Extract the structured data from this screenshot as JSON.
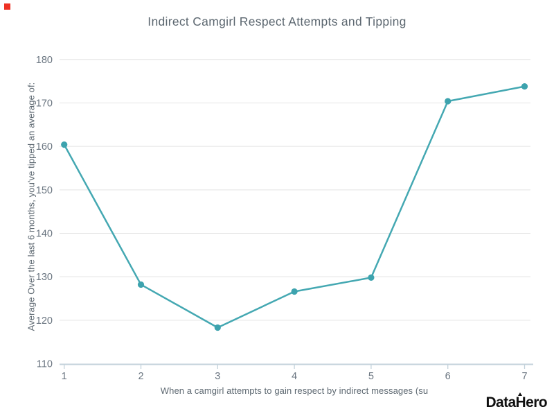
{
  "window": {
    "corner_marker_color": "#ee3124"
  },
  "footer": {
    "logo_text": "DataHero"
  },
  "chart_data": {
    "type": "line",
    "title": "Indirect Camgirl Respect Attempts and Tipping",
    "xlabel": "When a camgirl attempts to gain respect by indirect messages (su",
    "ylabel": "Average Over the last 6 months, you've tipped an average of:",
    "x": [
      1,
      2,
      3,
      4,
      5,
      6,
      7
    ],
    "x_tick_labels": [
      "1",
      "2",
      "3",
      "4",
      "5",
      "6",
      "7"
    ],
    "values": [
      160.4,
      128.2,
      118.3,
      126.6,
      129.8,
      170.4,
      173.8
    ],
    "ylim": [
      110,
      180
    ],
    "yticks": [
      110,
      120,
      130,
      140,
      150,
      160,
      170,
      180
    ],
    "grid": "horizontal",
    "legend": "none",
    "marker": "circle",
    "colors": {
      "line": "#44a8b2",
      "marker": "#3da3ae",
      "gridline": "#e3e3e3",
      "axis_line": "#c3d2db",
      "tick_label": "#6a7580",
      "title": "#5c6770"
    }
  }
}
